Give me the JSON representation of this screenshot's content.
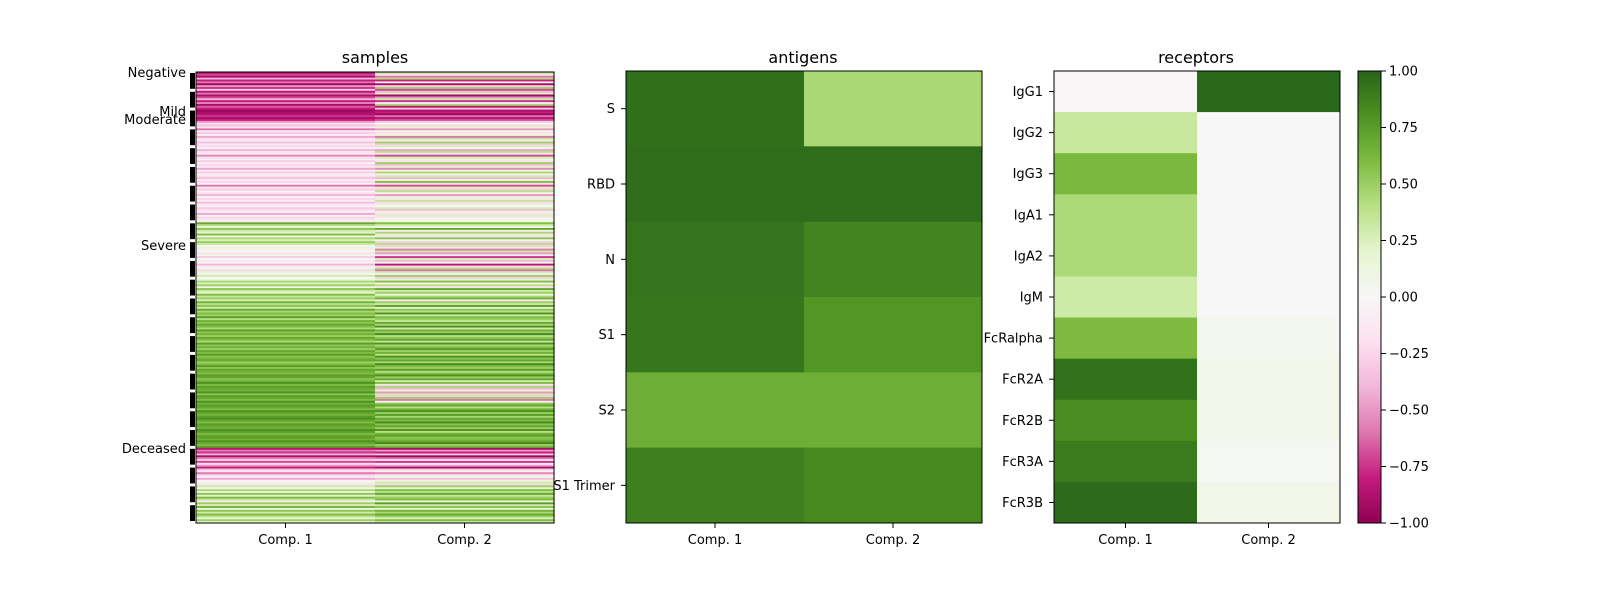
{
  "chart_data": [
    {
      "type": "heatmap",
      "id": "samples",
      "title": "samples",
      "xcategories": [
        "Comp. 1",
        "Comp. 2"
      ],
      "group_labels": [
        "Negative",
        "Mild",
        "Moderate",
        "Severe",
        "Deceased"
      ],
      "n_rows": 240,
      "group_row_starts": [
        0,
        20,
        26,
        80,
        200
      ],
      "value_range": [
        -1,
        1
      ],
      "colormap": "PiYG",
      "values": [
        [
          -0.85,
          0.35
        ],
        [
          -0.7,
          -0.2
        ],
        [
          -0.9,
          -0.6
        ],
        [
          -0.4,
          0.4
        ],
        [
          -0.8,
          -0.8
        ],
        [
          -0.6,
          0.1
        ],
        [
          -0.95,
          -0.9
        ],
        [
          -0.5,
          -0.3
        ],
        [
          -0.75,
          0.5
        ],
        [
          -0.3,
          -0.7
        ],
        [
          -0.85,
          -0.4
        ],
        [
          -0.6,
          0.25
        ],
        [
          -0.9,
          -0.95
        ],
        [
          -0.7,
          -0.5
        ],
        [
          -0.4,
          0.3
        ],
        [
          -0.8,
          -0.75
        ],
        [
          -0.55,
          -0.1
        ],
        [
          -0.9,
          0.45
        ],
        [
          -0.65,
          -0.85
        ],
        [
          -0.8,
          -0.3
        ],
        [
          -0.95,
          -0.9
        ],
        [
          -0.9,
          -0.8
        ],
        [
          -0.85,
          -0.95
        ],
        [
          -0.75,
          -0.6
        ],
        [
          -0.9,
          -0.85
        ],
        [
          -0.8,
          -0.7
        ],
        [
          -0.5,
          -0.3
        ],
        [
          -0.2,
          0.05
        ],
        [
          -0.35,
          -0.25
        ],
        [
          -0.15,
          0.2
        ],
        [
          -0.6,
          -0.5
        ],
        [
          -0.1,
          0.1
        ],
        [
          -0.3,
          -0.2
        ],
        [
          -0.05,
          0.15
        ],
        [
          -0.45,
          -0.6
        ],
        [
          -0.2,
          0.35
        ],
        [
          -0.1,
          -0.1
        ],
        [
          -0.35,
          0.5
        ],
        [
          -0.15,
          -0.3
        ],
        [
          -0.25,
          0.25
        ],
        [
          -0.05,
          0.05
        ],
        [
          -0.4,
          -0.45
        ],
        [
          -0.2,
          0.4
        ],
        [
          -0.1,
          -0.15
        ],
        [
          -0.55,
          -0.7
        ],
        [
          -0.2,
          0.3
        ],
        [
          -0.1,
          0.1
        ],
        [
          -0.3,
          -0.2
        ],
        [
          -0.05,
          0.5
        ],
        [
          -0.25,
          -0.35
        ],
        [
          -0.15,
          0.2
        ],
        [
          -0.45,
          -0.55
        ],
        [
          -0.1,
          0.15
        ],
        [
          -0.3,
          0.45
        ],
        [
          -0.05,
          -0.1
        ],
        [
          -0.2,
          0.3
        ],
        [
          -0.35,
          -0.4
        ],
        [
          -0.1,
          0.1
        ],
        [
          -0.25,
          0.6
        ],
        [
          -0.05,
          -0.2
        ],
        [
          -0.6,
          -0.7
        ],
        [
          -0.15,
          0.25
        ],
        [
          -0.3,
          -0.3
        ],
        [
          -0.1,
          0.4
        ],
        [
          -0.2,
          0.05
        ],
        [
          -0.4,
          -0.5
        ],
        [
          -0.05,
          0.2
        ],
        [
          -0.25,
          -0.15
        ],
        [
          -0.1,
          0.35
        ],
        [
          -0.35,
          -0.25
        ],
        [
          -0.15,
          0.15
        ],
        [
          -0.05,
          -0.05
        ],
        [
          -0.3,
          0.3
        ],
        [
          -0.2,
          -0.35
        ],
        [
          -0.1,
          0.1
        ],
        [
          -0.45,
          -0.2
        ],
        [
          -0.05,
          0.25
        ],
        [
          -0.25,
          -0.1
        ],
        [
          -0.15,
          0.05
        ],
        [
          -0.1,
          0.15
        ],
        [
          0.7,
          0.6
        ],
        [
          0.4,
          0.3
        ],
        [
          0.15,
          0.1
        ],
        [
          0.55,
          0.7
        ],
        [
          0.3,
          -0.1
        ],
        [
          0.2,
          0.45
        ],
        [
          0.6,
          0.2
        ],
        [
          0.1,
          -0.2
        ],
        [
          0.45,
          0.55
        ],
        [
          0.25,
          0.1
        ],
        [
          0.5,
          -0.3
        ],
        [
          0.35,
          0.4
        ],
        [
          -0.05,
          -0.3
        ],
        [
          0.15,
          0.2
        ],
        [
          -0.1,
          -0.6
        ],
        [
          0.05,
          0.3
        ],
        [
          -0.2,
          -0.5
        ],
        [
          0.1,
          -0.1
        ],
        [
          -0.3,
          -0.75
        ],
        [
          0.0,
          0.25
        ],
        [
          -0.15,
          -0.4
        ],
        [
          0.05,
          0.1
        ],
        [
          -0.4,
          -0.85
        ],
        [
          -0.1,
          -0.2
        ],
        [
          0.1,
          0.4
        ],
        [
          -0.25,
          -0.6
        ],
        [
          0.2,
          0.3
        ],
        [
          -0.05,
          -0.1
        ],
        [
          0.3,
          0.5
        ],
        [
          0.0,
          -0.3
        ],
        [
          0.15,
          0.2
        ],
        [
          0.45,
          0.6
        ],
        [
          0.25,
          0.1
        ],
        [
          0.5,
          0.4
        ],
        [
          0.1,
          -0.2
        ],
        [
          0.55,
          0.7
        ],
        [
          0.3,
          0.3
        ],
        [
          0.2,
          0.5
        ],
        [
          0.6,
          0.1
        ],
        [
          0.35,
          0.45
        ],
        [
          0.5,
          0.65
        ],
        [
          0.25,
          -0.15
        ],
        [
          0.65,
          0.5
        ],
        [
          0.4,
          0.3
        ],
        [
          0.55,
          0.75
        ],
        [
          0.3,
          0.2
        ],
        [
          0.7,
          0.55
        ],
        [
          0.45,
          0.4
        ],
        [
          0.6,
          0.8
        ],
        [
          0.5,
          0.3
        ],
        [
          0.75,
          0.6
        ],
        [
          0.4,
          0.5
        ],
        [
          0.65,
          0.35
        ],
        [
          0.55,
          0.7
        ],
        [
          0.7,
          0.45
        ],
        [
          0.6,
          0.8
        ],
        [
          0.45,
          0.3
        ],
        [
          0.75,
          0.65
        ],
        [
          0.55,
          0.5
        ],
        [
          0.65,
          0.85
        ],
        [
          0.5,
          0.4
        ],
        [
          0.7,
          0.55
        ],
        [
          0.6,
          0.7
        ],
        [
          0.45,
          0.35
        ],
        [
          0.75,
          0.8
        ],
        [
          0.55,
          0.45
        ],
        [
          0.65,
          0.6
        ],
        [
          0.5,
          0.75
        ],
        [
          0.7,
          0.5
        ],
        [
          0.6,
          0.65
        ],
        [
          0.75,
          0.4
        ],
        [
          0.55,
          0.8
        ],
        [
          0.65,
          0.55
        ],
        [
          0.7,
          0.7
        ],
        [
          0.5,
          0.45
        ],
        [
          0.6,
          0.85
        ],
        [
          0.75,
          0.6
        ],
        [
          0.55,
          0.5
        ],
        [
          0.7,
          0.75
        ],
        [
          0.65,
          0.4
        ],
        [
          0.6,
          0.6
        ],
        [
          0.75,
          0.8
        ],
        [
          0.7,
          0.5
        ],
        [
          0.55,
          0.7
        ],
        [
          0.65,
          0.3
        ],
        [
          0.8,
          0.6
        ],
        [
          0.6,
          -0.2
        ],
        [
          0.75,
          0.45
        ],
        [
          0.7,
          -0.4
        ],
        [
          0.65,
          0.2
        ],
        [
          0.8,
          -0.5
        ],
        [
          0.55,
          0.3
        ],
        [
          0.75,
          -0.3
        ],
        [
          0.7,
          0.5
        ],
        [
          0.6,
          -0.6
        ],
        [
          0.8,
          0.1
        ],
        [
          0.65,
          0.55
        ],
        [
          0.75,
          0.7
        ],
        [
          0.7,
          0.4
        ],
        [
          0.6,
          0.65
        ],
        [
          0.8,
          0.8
        ],
        [
          0.7,
          0.5
        ],
        [
          0.65,
          0.75
        ],
        [
          0.75,
          0.45
        ],
        [
          0.8,
          0.7
        ],
        [
          0.7,
          0.6
        ],
        [
          0.6,
          0.85
        ],
        [
          0.75,
          0.55
        ],
        [
          0.7,
          0.7
        ],
        [
          0.65,
          0.5
        ],
        [
          0.8,
          0.8
        ],
        [
          0.75,
          0.4
        ],
        [
          0.6,
          0.65
        ],
        [
          0.7,
          0.75
        ],
        [
          0.75,
          0.55
        ],
        [
          0.65,
          0.6
        ],
        [
          0.8,
          0.7
        ],
        [
          0.7,
          0.85
        ],
        [
          0.6,
          0.5
        ],
        [
          0.75,
          0.65
        ],
        [
          -0.85,
          -0.9
        ],
        [
          -0.6,
          -0.5
        ],
        [
          -0.75,
          -0.8
        ],
        [
          -0.4,
          -0.3
        ],
        [
          -0.9,
          -0.95
        ],
        [
          -0.55,
          -0.6
        ],
        [
          -0.3,
          -0.2
        ],
        [
          -0.7,
          -0.75
        ],
        [
          -0.2,
          -0.1
        ],
        [
          -0.5,
          -0.45
        ],
        [
          -0.8,
          -0.9
        ],
        [
          -0.35,
          -0.3
        ],
        [
          -0.15,
          0.05
        ],
        [
          -0.6,
          -0.55
        ],
        [
          -0.25,
          -0.2
        ],
        [
          -0.1,
          0.1
        ],
        [
          -0.45,
          -0.35
        ],
        [
          -0.05,
          0.15
        ],
        [
          0.1,
          0.3
        ],
        [
          -0.2,
          -0.25
        ],
        [
          0.3,
          0.5
        ],
        [
          0.05,
          0.2
        ],
        [
          0.45,
          0.6
        ],
        [
          0.15,
          0.4
        ],
        [
          0.55,
          0.7
        ],
        [
          0.2,
          0.35
        ],
        [
          0.6,
          0.5
        ],
        [
          0.35,
          0.6
        ],
        [
          -0.1,
          0.1
        ],
        [
          0.5,
          0.75
        ],
        [
          0.25,
          0.3
        ],
        [
          0.65,
          0.55
        ],
        [
          0.1,
          0.2
        ],
        [
          0.55,
          0.65
        ],
        [
          0.3,
          0.45
        ],
        [
          0.6,
          0.7
        ],
        [
          0.4,
          0.5
        ],
        [
          0.15,
          0.25
        ],
        [
          0.5,
          0.6
        ],
        [
          0.2,
          0.3
        ]
      ]
    },
    {
      "type": "heatmap",
      "id": "antigens",
      "title": "antigens",
      "xcategories": [
        "Comp. 1",
        "Comp. 2"
      ],
      "rows": [
        "S",
        "RBD",
        "N",
        "S1",
        "S2",
        "S1 Trimer"
      ],
      "values": [
        [
          0.95,
          0.45
        ],
        [
          0.96,
          0.96
        ],
        [
          0.93,
          0.86
        ],
        [
          0.92,
          0.78
        ],
        [
          0.67,
          0.67
        ],
        [
          0.88,
          0.84
        ]
      ],
      "value_range": [
        -1,
        1
      ],
      "colormap": "PiYG"
    },
    {
      "type": "heatmap",
      "id": "receptors",
      "title": "receptors",
      "xcategories": [
        "Comp. 1",
        "Comp. 2"
      ],
      "rows": [
        "IgG1",
        "IgG2",
        "IgG3",
        "IgA1",
        "IgA2",
        "IgM",
        "FcRalpha",
        "FcR2A",
        "FcR2B",
        "FcR3A",
        "FcR3B"
      ],
      "values": [
        [
          -0.02,
          0.98
        ],
        [
          0.34,
          0.0
        ],
        [
          0.62,
          0.0
        ],
        [
          0.44,
          0.0
        ],
        [
          0.44,
          0.0
        ],
        [
          0.31,
          0.0
        ],
        [
          0.61,
          0.04
        ],
        [
          0.94,
          0.06
        ],
        [
          0.82,
          0.06
        ],
        [
          0.9,
          0.02
        ],
        [
          0.97,
          0.07
        ]
      ],
      "value_range": [
        -1,
        1
      ],
      "colormap": "PiYG"
    }
  ],
  "colorbar": {
    "ticks": [
      1,
      0.75,
      0.5,
      0.25,
      0,
      -0.25,
      -0.5,
      -0.75,
      -1
    ],
    "tick_labels": [
      "1.00",
      "0.75",
      "0.50",
      "0.25",
      "0.00",
      "−0.25",
      "−0.50",
      "−0.75",
      "−1.00"
    ]
  }
}
